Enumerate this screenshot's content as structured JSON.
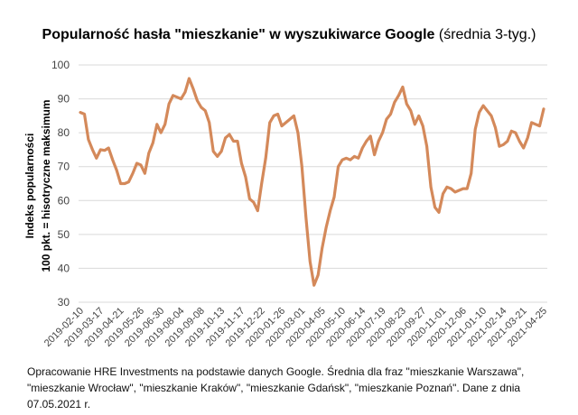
{
  "title": {
    "bold": "Popularność hasła \"mieszkanie\" w wyszukiwarce Google",
    "light": " (średnia 3-tyg.)"
  },
  "footnote": "Opracowanie HRE Investments na podstawie danych Google. Średnia dla fraz \"mieszkanie Warszawa\", \"mieszkanie Wrocław\", \"mieszkanie Kraków\", \"mieszkanie Gdańsk\", \"mieszkanie Poznań\". Dane z dnia 07.05.2021 r.",
  "colors": {
    "line": "#D4895A",
    "grid": "#D9D9D9",
    "tick_text": "#444444"
  },
  "chart_data": {
    "type": "line",
    "title": "Popularność hasła \"mieszkanie\" w wyszukiwarce Google (średnia 3-tyg.)",
    "ylabel_line1": "Indeks popularności",
    "ylabel_line2": "100 pkt. = hisotryczne maksimum",
    "xlabel": "",
    "ylim": [
      30,
      100
    ],
    "yticks": [
      30,
      40,
      50,
      60,
      70,
      80,
      90,
      100
    ],
    "grid": true,
    "legend": "none",
    "x_tick_labels": [
      "2019-02-10",
      "2019-03-17",
      "2019-04-21",
      "2019-05-26",
      "2019-06-30",
      "2019-08-04",
      "2019-09-08",
      "2019-10-13",
      "2019-11-17",
      "2019-12-22",
      "2020-01-26",
      "2020-03-01",
      "2020-04-05",
      "2020-05-10",
      "2020-06-14",
      "2020-07-19",
      "2020-08-23",
      "2020-09-27",
      "2020-11-01",
      "2020-12-06",
      "2021-01-10",
      "2021-02-14",
      "2021-03-21",
      "2021-04-25"
    ],
    "x_start": "2019-02-10",
    "x_step": "1 week",
    "series": [
      {
        "name": "mieszkanie (średnia 3-tyg.)",
        "values": [
          86,
          85.5,
          78,
          75,
          72.5,
          75,
          74.8,
          75.5,
          72,
          69,
          65,
          65,
          65.5,
          68,
          71,
          70.5,
          68,
          74,
          77,
          82.5,
          80,
          82.5,
          88.5,
          91,
          90.5,
          90,
          92,
          96,
          93,
          89.5,
          87.5,
          86.5,
          83,
          74.5,
          73,
          74.5,
          78.5,
          79.5,
          77.5,
          77.5,
          71,
          67,
          60.5,
          59.5,
          57,
          65,
          72.5,
          83,
          85,
          85.5,
          82,
          83,
          84,
          85,
          80,
          70,
          55,
          42,
          35,
          38,
          46,
          52,
          57,
          61,
          70,
          72,
          72.5,
          72,
          73,
          72.5,
          75.5,
          77.5,
          79,
          73.5,
          77.5,
          80,
          84,
          85.5,
          89,
          91,
          93.5,
          88.5,
          86.5,
          82.5,
          85,
          82,
          76,
          64,
          58,
          56.5,
          62,
          64,
          63.5,
          62.5,
          63,
          63.5,
          63.5,
          68,
          81,
          86,
          88,
          86.5,
          85,
          81.5,
          76,
          76.5,
          77.5,
          80.5,
          80,
          77.5,
          75.5,
          78.5,
          83,
          82.5,
          82,
          87
        ]
      }
    ]
  }
}
